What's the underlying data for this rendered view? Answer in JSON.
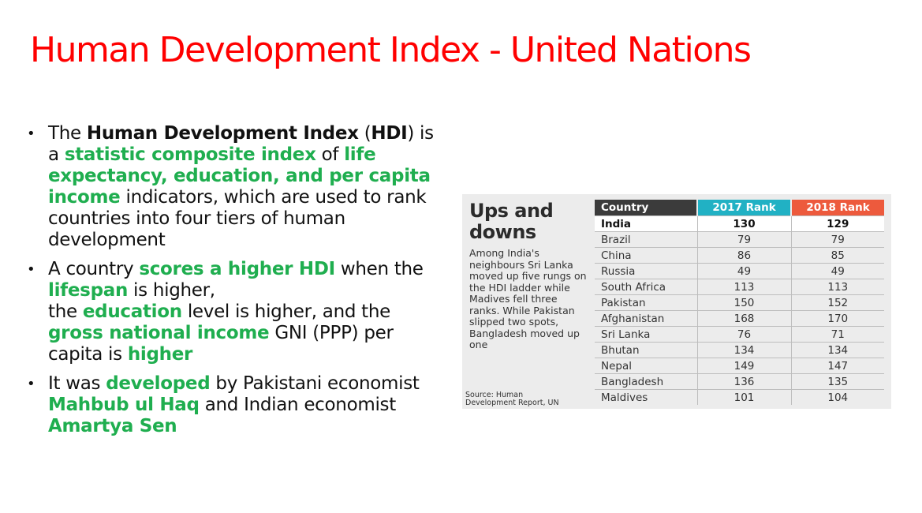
{
  "slide": {
    "title": "Human Development Index - United Nations"
  },
  "bullets": {
    "b1": {
      "t1": "The ",
      "t2": "Human Development Index",
      "t3": " (",
      "t4": "HDI",
      "t5": ") is a ",
      "t6": "statistic composite index",
      "t7": " of ",
      "t8": "life expectancy, education, and per capita income",
      "t9": " indicators, which are used to rank countries into four tiers of human development"
    },
    "b2": {
      "t1": " A country ",
      "t2": "scores a higher HDI",
      "t3": " when the ",
      "t4": "lifespan",
      "t5": " is higher,",
      "t6": "the ",
      "t7": "education",
      "t8": " level is higher, and the ",
      "t9": "gross national income",
      "t10": " GNI (PPP) per capita is ",
      "t11": "higher"
    },
    "b3": {
      "t1": "It was ",
      "t2": "developed",
      "t3": " by Pakistani economist ",
      "t4": "Mahbub ul Haq",
      "t5": " and Indian economist ",
      "t6": "Amartya Sen"
    }
  },
  "infographic": {
    "heading_line1": "Ups and",
    "heading_line2": "downs",
    "description": "Among India's neighbours Sri Lanka moved up five rungs on the HDI ladder while Madives fell three ranks. While Pakistan slipped two spots, Bangladesh moved up one",
    "source_line1": "Source: Human",
    "source_line2": "Development Report, UN",
    "table": {
      "headers": [
        "Country",
        "2017 Rank",
        "2018 Rank"
      ],
      "rows": [
        [
          "India",
          "130",
          "129"
        ],
        [
          "Brazil",
          "79",
          "79"
        ],
        [
          "China",
          "86",
          "85"
        ],
        [
          "Russia",
          "49",
          "49"
        ],
        [
          "South Africa",
          "113",
          "113"
        ],
        [
          "Pakistan",
          "150",
          "152"
        ],
        [
          "Afghanistan",
          "168",
          "170"
        ],
        [
          "Sri Lanka",
          "76",
          "71"
        ],
        [
          "Bhutan",
          "134",
          "134"
        ],
        [
          "Nepal",
          "149",
          "147"
        ],
        [
          "Bangladesh",
          "136",
          "135"
        ],
        [
          "Maldives",
          "101",
          "104"
        ]
      ]
    }
  },
  "colors": {
    "title": "#ff0000",
    "highlight_green": "#1fae4f",
    "header_country": "#3b3b3b",
    "header_2017": "#21b1c4",
    "header_2018": "#ed5a3d"
  }
}
